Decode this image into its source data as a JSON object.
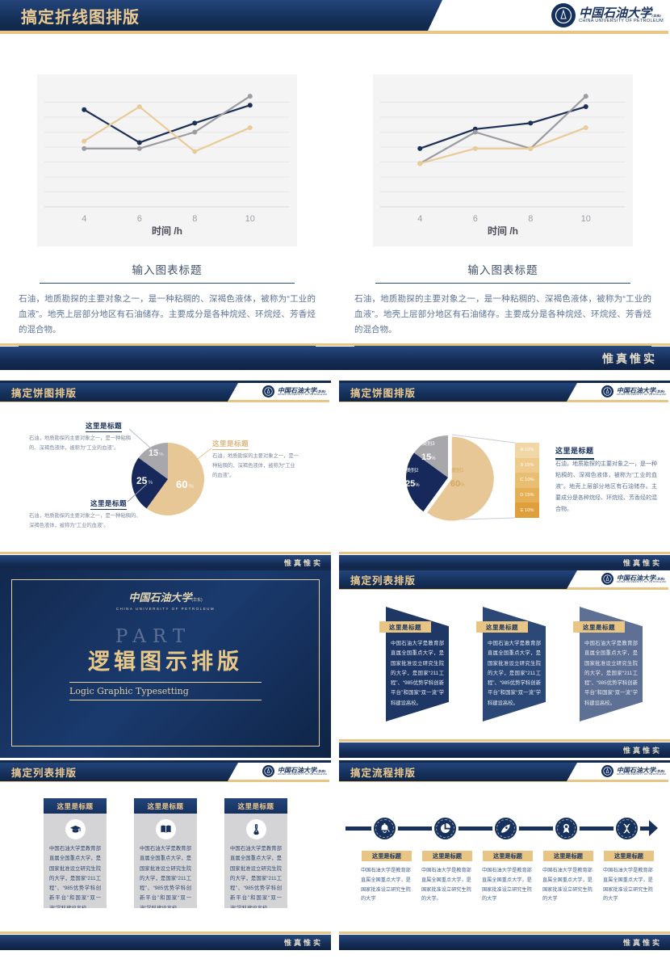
{
  "university": {
    "name_zh": "中国石油大学",
    "name_suffix": "(华东)",
    "name_en": "CHINA UNIVERSITY OF PETROLEUM"
  },
  "footer": {
    "motto": "惟真惟实"
  },
  "slides": {
    "line": {
      "title": "搞定折线图排版",
      "caption_title": "输入图表标题",
      "caption_body": "石油，地质勘探的主要对象之一，是一种粘稠的、深褐色液体，被称为“工业的血液”。地壳上层部分地区有石油储存。主要成分是各种烷烃、环烷烃、芳香烃的混合物。"
    },
    "pie_callouts": {
      "title": "搞定饼图排版",
      "labels": [
        {
          "title": "这里是标题",
          "body": "石油，地质勘探的主要对象之一，是一种粘稠的、深褐色液体，被称为“工业的血液”。"
        },
        {
          "title": "这里是标题",
          "body": "石油，地质勘探的主要对象之一，是一种粘稠的、深褐色液体，被称为“工业的血液”。"
        },
        {
          "title": "这里是标题",
          "body": "石油，地质勘探的主要对象之一，是一种粘稠的、深褐色液体，被称为“工业的血液”。"
        }
      ],
      "values": [
        {
          "value": "60",
          "unit": "%"
        },
        {
          "value": "25",
          "unit": "%"
        },
        {
          "value": "15",
          "unit": "%"
        }
      ]
    },
    "pie_detail": {
      "title": "搞定饼图排版",
      "slice_labels": [
        {
          "name": "类别1",
          "value": "60",
          "unit": "%"
        },
        {
          "name": "类别2",
          "value": "25",
          "unit": "%"
        },
        {
          "name": "类别3",
          "value": "15",
          "unit": "%"
        }
      ],
      "heading": "这里是标题",
      "body": "石油，地质勘探的主要对象之一，是一种粘稠的、深褐色液体，被称为“工业的血液”。地壳上层部分地区有石油储存。主要成分是各种烷烃、环烷烃、芳香烃的混合物。"
    },
    "divider": {
      "part_label": "PART",
      "title": "逻辑图示排版",
      "subtitle": "Logic Graphic Typesetting"
    },
    "list_banners": {
      "title": "搞定列表排版",
      "items": [
        {
          "title": "这里是标题",
          "body": "中国石油大学是教育部直属全国重点大学，是国家批准设立研究生院的大学，是国家“211工程”、“985优势学科创新平台”和国家“双一流”学科建设高校。"
        },
        {
          "title": "这里是标题",
          "body": "中国石油大学是教育部直属全国重点大学，是国家批准设立研究生院的大学，是国家“211工程”、“985优势学科创新平台”和国家“双一流”学科建设高校。"
        },
        {
          "title": "这里是标题",
          "body": "中国石油大学是教育部直属全国重点大学，是国家批准设立研究生院的大学，是国家“211工程”、“985优势学科创新平台”和国家“双一流”学科建设高校。"
        }
      ]
    },
    "list_cards": {
      "title": "搞定列表排版",
      "items": [
        {
          "title": "这里是标题",
          "icon": "graduation-cap-icon",
          "body": "中国石油大学是教育部直属全国重点大学，是国家批准设立研究生院的大学，是国家“211工程”、“985优势学科创新平台”和国家“双一流”学科建设高校。"
        },
        {
          "title": "这里是标题",
          "icon": "open-book-icon",
          "body": "中国石油大学是教育部直属全国重点大学，是国家批准设立研究生院的大学，是国家“211工程”、“985优势学科创新平台”和国家“双一流”学科建设高校。"
        },
        {
          "title": "这里是标题",
          "icon": "flask-icon",
          "body": "中国石油大学是教育部直属全国重点大学，是国家批准设立研究生院的大学，是国家“211工程”、“985优势学科创新平台”和国家“双一流”学科建设高校。"
        }
      ]
    },
    "flow": {
      "title": "搞定流程排版",
      "items": [
        {
          "title": "这里是标题",
          "icon": "bell-icon",
          "body": "中国石油大学是教育部直属全国重点大学，是国家批准设立研究生院的大学"
        },
        {
          "title": "这里是标题",
          "icon": "pie-chart-icon",
          "body": "中国石油大学是教育部直属全国重点大学，是国家批准设立研究生院的大学。"
        },
        {
          "title": "这里是标题",
          "icon": "rocket-icon",
          "body": "中国石油大学是教育部直属全国重点大学，是国家批准设立研究生院的大学"
        },
        {
          "title": "这里是标题",
          "icon": "medal-icon",
          "body": "中国石油大学是教育部直属全国重点大学，是国家批准设立研究生院的大学"
        },
        {
          "title": "这里是标题",
          "icon": "dna-icon",
          "body": "中国石油大学是教育部直属全国重点大学，是国家批准设立研究生院的大学"
        }
      ]
    }
  },
  "colors": {
    "navy": "#16315c",
    "navy_dark": "#102647",
    "gold": "#e8c585",
    "gold_text": "#eccb92",
    "tan_slice": "#e7c796",
    "gray_slice": "#a8a8ac",
    "chart_bg": "#f4f4f5"
  },
  "chart_data": [
    {
      "type": "line",
      "title": "输入图表标题",
      "x": [
        4,
        6,
        8,
        10
      ],
      "xlabel": "时间 /h",
      "ylim": [
        0,
        8
      ],
      "grid": true,
      "legend": "none",
      "series": [
        {
          "name": "navy-series",
          "color": "#1c2f55",
          "values": [
            6.5,
            4.3,
            5.6,
            6.8
          ]
        },
        {
          "name": "gray-series",
          "color": "#9b9ba1",
          "values": [
            3.9,
            3.9,
            5.0,
            7.4
          ]
        },
        {
          "name": "gold-series",
          "color": "#e9cb97",
          "values": [
            4.4,
            6.7,
            3.7,
            5.3
          ]
        }
      ]
    },
    {
      "type": "line",
      "title": "输入图表标题",
      "x": [
        4,
        6,
        8,
        10
      ],
      "xlabel": "时间 /h",
      "ylim": [
        0,
        8
      ],
      "grid": true,
      "legend": "none",
      "series": [
        {
          "name": "navy-series",
          "color": "#1c2f55",
          "values": [
            3.9,
            5.2,
            5.6,
            6.7
          ]
        },
        {
          "name": "gray-series",
          "color": "#9b9ba1",
          "values": [
            2.9,
            5.0,
            3.9,
            7.4
          ]
        },
        {
          "name": "gold-series",
          "color": "#e9cb97",
          "values": [
            2.9,
            3.9,
            3.9,
            5.3
          ]
        }
      ]
    },
    {
      "type": "pie",
      "start_angle": 0,
      "explode": null,
      "slices": [
        {
          "label": "60 %",
          "value": 60,
          "color": "#e7c796"
        },
        {
          "label": "25 %",
          "value": 25,
          "color": "#16295a"
        },
        {
          "label": "15 %",
          "value": 15,
          "color": "#a8a8ac"
        }
      ]
    },
    {
      "type": "pie",
      "start_angle": 0,
      "explode": 0,
      "slices": [
        {
          "label": "类别1 60%",
          "value": 60,
          "color": "#e7c796"
        },
        {
          "label": "类别2 25%",
          "value": 25,
          "color": "#16295a"
        },
        {
          "label": "类别3 15%",
          "value": 15,
          "color": "#a8a8ac"
        }
      ]
    },
    {
      "type": "bar",
      "orientation": "vertical-stack",
      "note": "breakdown of 60% slice",
      "segments": [
        "A 10%",
        "B 15%",
        "C 10%",
        "D 15%",
        "E 10%"
      ],
      "colors": [
        "#f2d7a6",
        "#eecb8c",
        "#eabe72",
        "#e5af55",
        "#dfa03c"
      ]
    }
  ]
}
